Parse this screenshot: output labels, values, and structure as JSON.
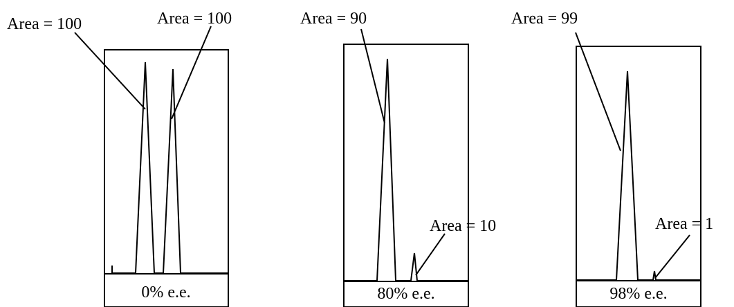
{
  "panels": [
    {
      "caption": "0% e.e.",
      "annotations": [
        "Area = 100",
        "Area = 100"
      ]
    },
    {
      "caption": "80% e.e.",
      "annotations": [
        "Area = 90",
        "Area = 10"
      ]
    },
    {
      "caption": "98% e.e.",
      "annotations": [
        "Area = 99",
        "Area = 1"
      ]
    }
  ]
}
